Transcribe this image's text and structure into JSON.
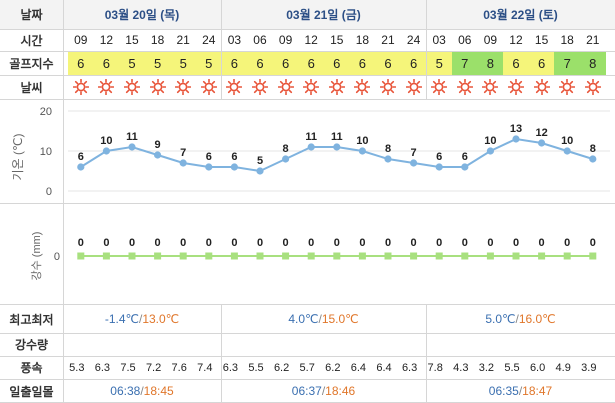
{
  "labels": {
    "date": "날짜",
    "time": "시간",
    "golf_index": "골프지수",
    "weather": "날씨",
    "temp_axis": "기온 (℃)",
    "precip_axis": "강수 (mm)",
    "min_max": "최고최저",
    "rainfall": "강수량",
    "wind": "풍속",
    "sunrise_sunset": "일출일몰"
  },
  "days": [
    {
      "date": "03월 20일 (목)",
      "min": "-1.4℃",
      "max": "13.0℃",
      "sunrise": "06:38",
      "sunset": "18:45"
    },
    {
      "date": "03월 21일 (금)",
      "min": "4.0℃",
      "max": "15.0℃",
      "sunrise": "06:37",
      "sunset": "18:46"
    },
    {
      "date": "03월 22일 (토)",
      "min": "5.0℃",
      "max": "16.0℃",
      "sunrise": "06:35",
      "sunset": "18:47"
    }
  ],
  "hours": [
    "09",
    "12",
    "15",
    "18",
    "21",
    "24",
    "03",
    "06",
    "09",
    "12",
    "15",
    "18",
    "21",
    "24",
    "03",
    "06",
    "09",
    "12",
    "15",
    "18",
    "21"
  ],
  "golf_index": [
    6,
    6,
    5,
    5,
    5,
    5,
    6,
    6,
    6,
    6,
    6,
    6,
    6,
    6,
    5,
    7,
    8,
    6,
    6,
    7,
    8
  ],
  "weather_icon": "sun-icon",
  "wind_speed": [
    5.3,
    6.3,
    7.5,
    7.2,
    7.6,
    7.4,
    6.3,
    5.5,
    6.2,
    5.7,
    6.2,
    6.4,
    6.4,
    6.3,
    7.8,
    4.3,
    3.2,
    5.5,
    6.0,
    4.9,
    3.9
  ],
  "colors": {
    "golf_yellow": "#f5f57a",
    "golf_green": "#9be06a",
    "temp_line": "#7fb3df",
    "precip_line": "#a8e07f",
    "header_text": "#2c4f86"
  },
  "chart_data": [
    {
      "type": "line",
      "title": "기온",
      "ylabel": "기온 (℃)",
      "categories": [
        "09",
        "12",
        "15",
        "18",
        "21",
        "24",
        "03",
        "06",
        "09",
        "12",
        "15",
        "18",
        "21",
        "24",
        "03",
        "06",
        "09",
        "12",
        "15",
        "18",
        "21"
      ],
      "values": [
        6,
        10,
        11,
        9,
        7,
        6,
        6,
        5,
        8,
        11,
        11,
        10,
        8,
        7,
        6,
        6,
        10,
        13,
        12,
        10,
        8
      ],
      "ylim": [
        0,
        20
      ],
      "yticks": [
        0,
        10,
        20
      ],
      "grid": true
    },
    {
      "type": "line",
      "title": "강수",
      "ylabel": "강수 (mm)",
      "categories": [
        "09",
        "12",
        "15",
        "18",
        "21",
        "24",
        "03",
        "06",
        "09",
        "12",
        "15",
        "18",
        "21",
        "24",
        "03",
        "06",
        "09",
        "12",
        "15",
        "18",
        "21"
      ],
      "values": [
        0,
        0,
        0,
        0,
        0,
        0,
        0,
        0,
        0,
        0,
        0,
        0,
        0,
        0,
        0,
        0,
        0,
        0,
        0,
        0,
        0
      ],
      "yticks": [
        0
      ],
      "grid": false
    }
  ]
}
